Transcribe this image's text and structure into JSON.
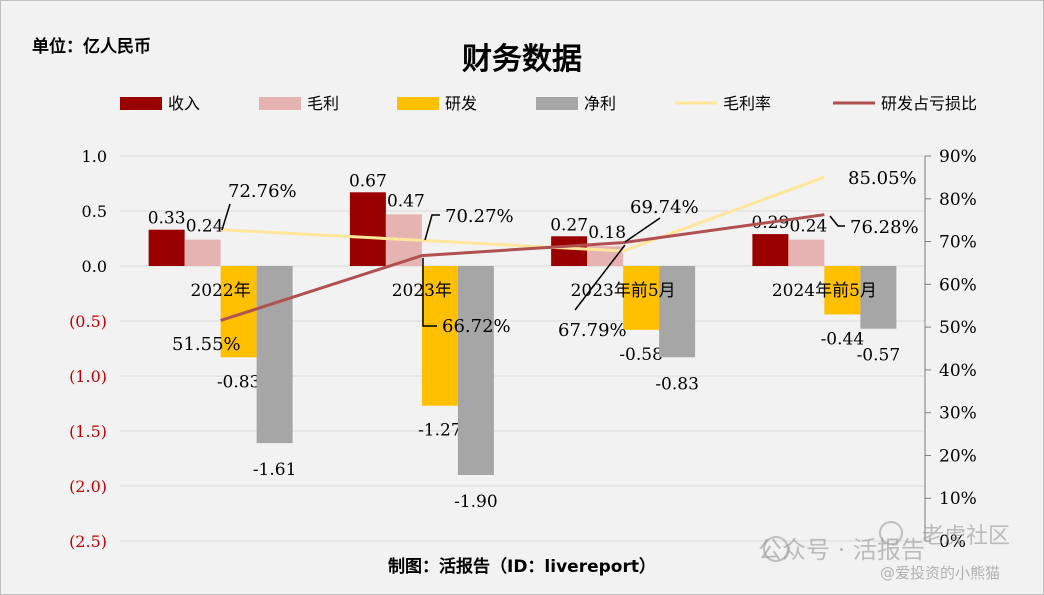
{
  "unit_label": "单位：亿人民币",
  "credit": "制图：活报告（ID：livereport）",
  "watermark": {
    "main": "公众号 · 活报告",
    "side": "老虎社区",
    "sub": "@爱投资的小熊猫"
  },
  "colors": {
    "revenue": "#990000",
    "gross_profit": "#e6b3b3",
    "rd": "#ffc000",
    "net_profit": "#a6a6a6",
    "gross_margin": "#ffe699",
    "rd_loss_ratio": "#b05050",
    "negative_tick": "#c00000"
  },
  "chart_data": {
    "type": "bar",
    "title": "财务数据",
    "categories": [
      "2022年",
      "2023年",
      "2023年前5月",
      "2024年前5月"
    ],
    "series": [
      {
        "name": "收入",
        "type": "bar",
        "axis": "left",
        "values": [
          0.33,
          0.67,
          0.27,
          0.29
        ],
        "labels": [
          "0.33",
          "0.67",
          "0.27",
          "0.29"
        ]
      },
      {
        "name": "毛利",
        "type": "bar",
        "axis": "left",
        "values": [
          0.24,
          0.47,
          0.18,
          0.24
        ],
        "labels": [
          "0.24",
          "0.47",
          "0.18",
          "0.24"
        ]
      },
      {
        "name": "研发",
        "type": "bar",
        "axis": "left",
        "values": [
          -0.83,
          -1.27,
          -0.58,
          -0.44
        ],
        "labels": [
          "-0.83",
          "-1.27",
          "-0.58",
          "-0.44"
        ]
      },
      {
        "name": "净利",
        "type": "bar",
        "axis": "left",
        "values": [
          -1.61,
          -1.9,
          -0.83,
          -0.57
        ],
        "labels": [
          "-1.61",
          "-1.90",
          "-0.83",
          "-0.57"
        ]
      },
      {
        "name": "毛利率",
        "type": "line",
        "axis": "right",
        "values": [
          72.76,
          70.27,
          67.79,
          85.05
        ],
        "labels": [
          "72.76%",
          "70.27%",
          "67.79%",
          "85.05%"
        ]
      },
      {
        "name": "研发占亏损比",
        "type": "line",
        "axis": "right",
        "values": [
          51.55,
          66.72,
          69.74,
          76.28
        ],
        "labels": [
          "51.55%",
          "66.72%",
          "69.74%",
          "76.28%"
        ]
      }
    ],
    "left_axis": {
      "ylim": [
        -2.5,
        1.0
      ],
      "ticks": [
        1.0,
        0.5,
        0.0,
        -0.5,
        -1.0,
        -1.5,
        -2.0,
        -2.5
      ],
      "tick_labels": [
        "1.0",
        "0.5",
        "0.0",
        "(0.5)",
        "(1.0)",
        "(1.5)",
        "(2.0)",
        "(2.5)"
      ]
    },
    "right_axis": {
      "ylim": [
        0,
        90
      ],
      "ticks": [
        90,
        80,
        70,
        60,
        50,
        40,
        30,
        20,
        10,
        0
      ],
      "tick_labels": [
        "90%",
        "80%",
        "70%",
        "60%",
        "50%",
        "40%",
        "30%",
        "20%",
        "10%",
        "0%"
      ]
    },
    "grid": true,
    "legend_position": "top"
  }
}
